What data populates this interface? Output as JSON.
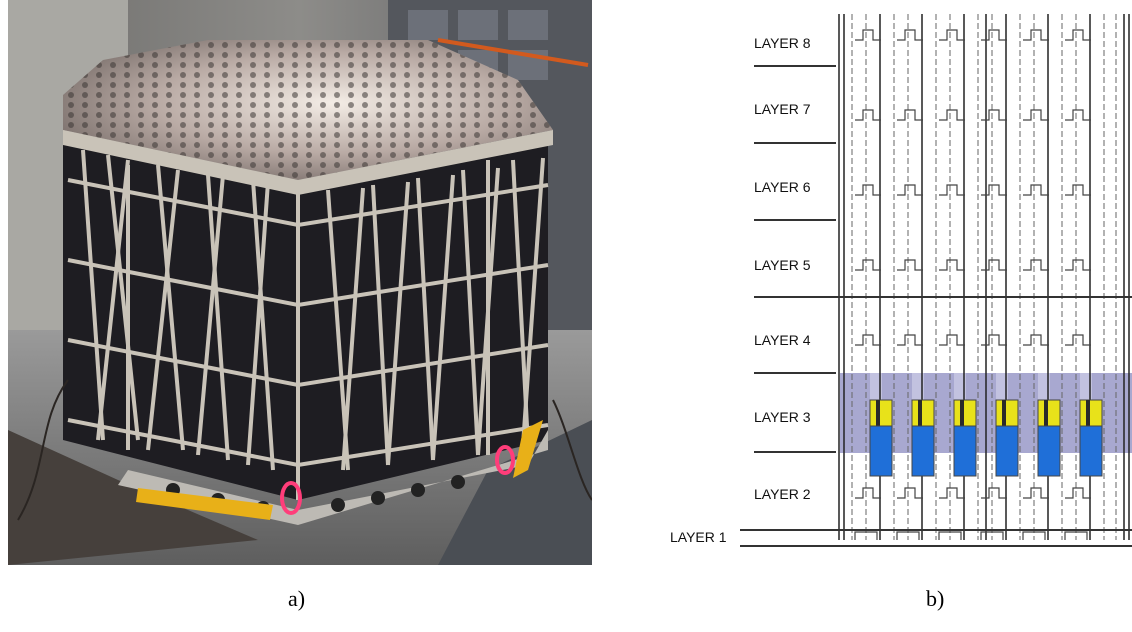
{
  "captions": {
    "a": "a)",
    "b": "b)"
  },
  "layers": [
    "LAYER 1",
    "LAYER 2",
    "LAYER 3",
    "LAYER 4",
    "LAYER 5",
    "LAYER 6",
    "LAYER 7",
    "LAYER 8"
  ],
  "photo": {
    "description_icon": "detector-tracker-photo"
  },
  "colors": {
    "module_band": "#a8a8d0",
    "cap_yellow": "#e8e21a",
    "cylinder_blue": "#1f6fd8",
    "frame": "#c9c3b8",
    "panel": "#1e1d22"
  }
}
